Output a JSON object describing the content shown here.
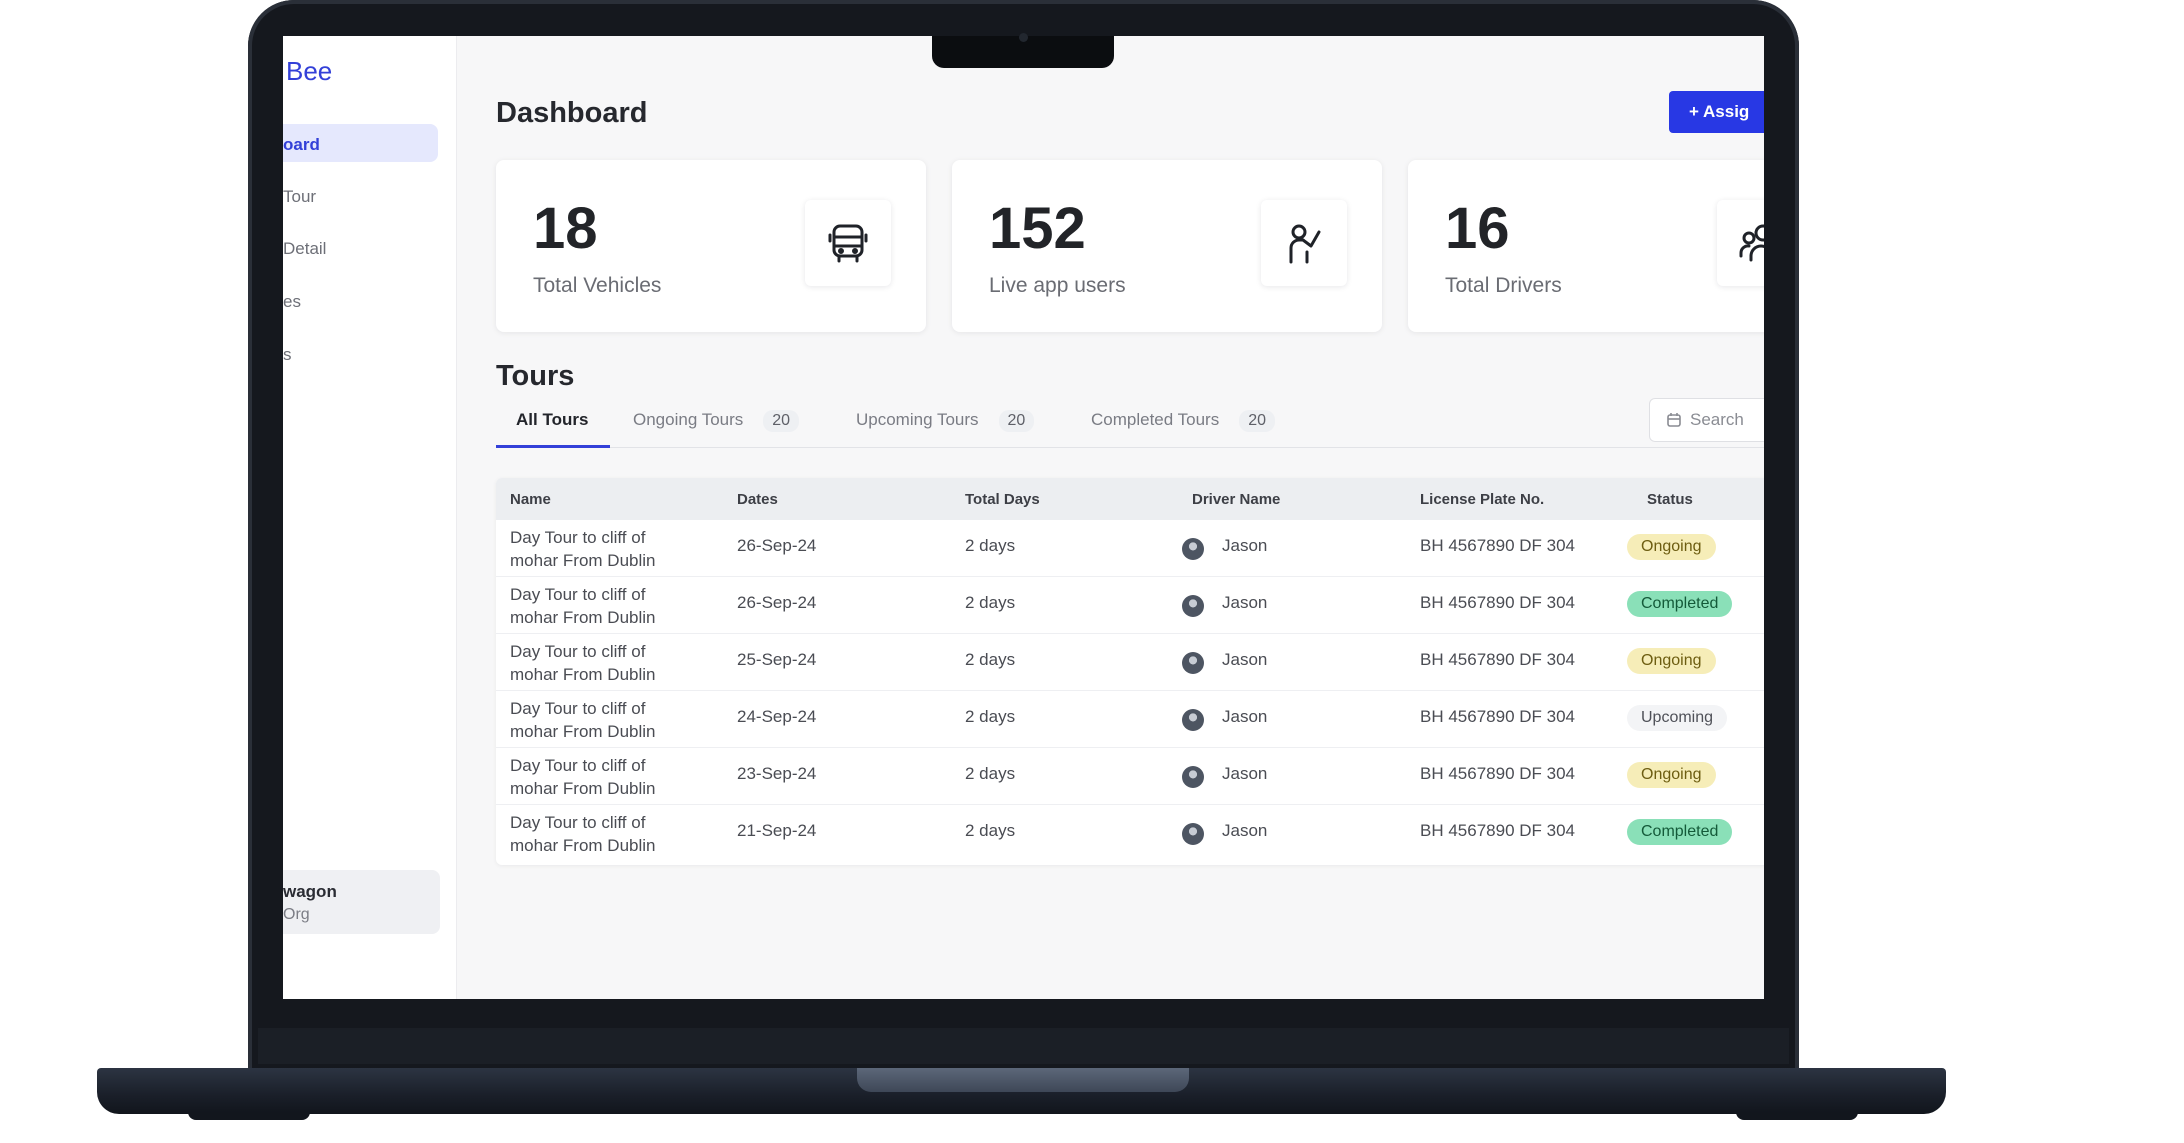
{
  "sidebar": {
    "brand": "Bee",
    "items": [
      {
        "label": "oard",
        "active": true
      },
      {
        "label": "Tour"
      },
      {
        "label": "Detail"
      },
      {
        "label": "es"
      },
      {
        "label": "s"
      }
    ],
    "org": {
      "name": "wagon",
      "sub": "Org"
    }
  },
  "header": {
    "title": "Dashboard",
    "assign_button": "+ Assig"
  },
  "stats": [
    {
      "value": "18",
      "label": "Total Vehicles",
      "icon": "bus-icon"
    },
    {
      "value": "152",
      "label": "Live app users",
      "icon": "user-wave-icon"
    },
    {
      "value": "16",
      "label": "Total Drivers",
      "icon": "users-icon"
    }
  ],
  "tours": {
    "title": "Tours",
    "tabs": [
      {
        "label": "All Tours",
        "active": true
      },
      {
        "label": "Ongoing Tours",
        "count": "20"
      },
      {
        "label": "Upcoming Tours",
        "count": "20"
      },
      {
        "label": "Completed Tours",
        "count": "20"
      }
    ],
    "search_placeholder": "Search",
    "columns": [
      "Name",
      "Dates",
      "Total Days",
      "Driver Name",
      "License Plate No.",
      "Status"
    ],
    "rows": [
      {
        "name": "Day Tour to cliff of mohar From Dublin",
        "date": "26-Sep-24",
        "days": "2 days",
        "driver": "Jason",
        "plate": "BH 4567890 DF 304",
        "status": "Ongoing"
      },
      {
        "name": "Day Tour to cliff of mohar From Dublin",
        "date": "26-Sep-24",
        "days": "2 days",
        "driver": "Jason",
        "plate": "BH 4567890 DF 304",
        "status": "Completed"
      },
      {
        "name": "Day Tour to cliff of mohar From Dublin",
        "date": "25-Sep-24",
        "days": "2 days",
        "driver": "Jason",
        "plate": "BH 4567890 DF 304",
        "status": "Ongoing"
      },
      {
        "name": "Day Tour to cliff of mohar From Dublin",
        "date": "24-Sep-24",
        "days": "2 days",
        "driver": "Jason",
        "plate": "BH 4567890 DF 304",
        "status": "Upcoming"
      },
      {
        "name": "Day Tour to cliff of mohar From Dublin",
        "date": "23-Sep-24",
        "days": "2 days",
        "driver": "Jason",
        "plate": "BH 4567890 DF 304",
        "status": "Ongoing"
      },
      {
        "name": "Day Tour to cliff of mohar From Dublin",
        "date": "21-Sep-24",
        "days": "2 days",
        "driver": "Jason",
        "plate": "BH 4567890 DF 304",
        "status": "Completed"
      }
    ]
  },
  "colors": {
    "accent": "#3340d8",
    "ongoing": "#f6edb8",
    "completed": "#8ae0b8",
    "upcoming": "#f3f4f6"
  }
}
